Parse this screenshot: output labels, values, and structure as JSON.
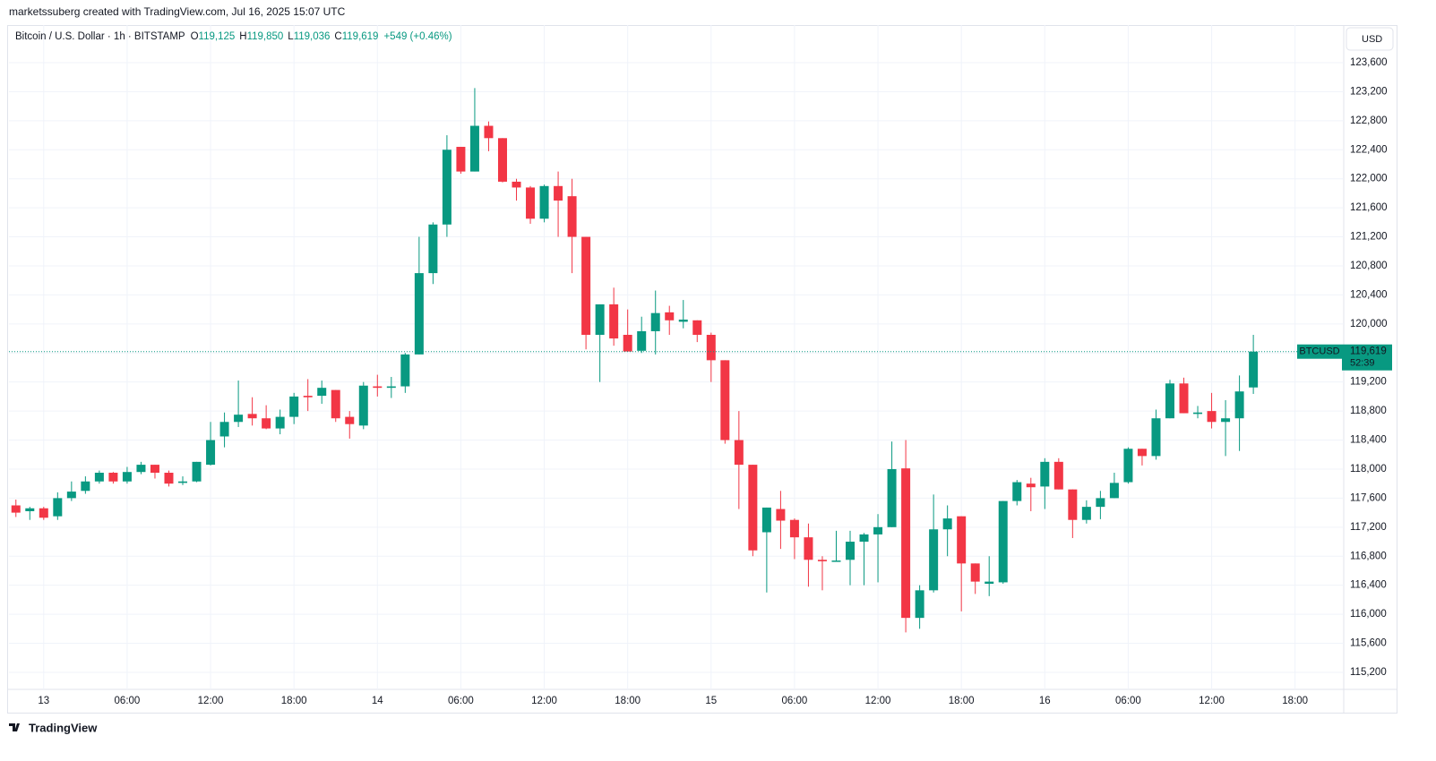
{
  "page_caption": "marketssuberg created with TradingView.com, Jul 16, 2025 15:07 UTC",
  "footer_brand": "TradingView",
  "chart_data": {
    "type": "candlestick",
    "header": {
      "symbol_title": "Bitcoin / U.S. Dollar · 1h · BITSTAMP",
      "ohlc": [
        {
          "key": "O",
          "value": "119,125"
        },
        {
          "key": "H",
          "value": "119,850"
        },
        {
          "key": "L",
          "value": "119,036"
        },
        {
          "key": "C",
          "value": "119,619"
        }
      ],
      "change": "+549 (+0.46%)"
    },
    "currency": "USD",
    "last_price": {
      "symbol": "BTCUSD",
      "label": "119,619",
      "countdown": "52:39"
    },
    "up_color": "#089981",
    "down_color": "#f23645",
    "grid": true,
    "categories": [
      null,
      null,
      "13",
      null,
      null,
      null,
      null,
      null,
      "06:00",
      null,
      null,
      null,
      null,
      null,
      "12:00",
      null,
      null,
      null,
      null,
      null,
      "18:00",
      null,
      null,
      null,
      null,
      null,
      "14",
      null,
      null,
      null,
      null,
      null,
      "06:00",
      null,
      null,
      null,
      null,
      null,
      "12:00",
      null,
      null,
      null,
      null,
      null,
      "18:00",
      null,
      null,
      null,
      null,
      null,
      "15",
      null,
      null,
      null,
      null,
      null,
      "06:00",
      null,
      null,
      null,
      null,
      null,
      "12:00",
      null,
      null,
      null,
      null,
      null,
      "18:00",
      null,
      null,
      null,
      null,
      null,
      "16",
      null,
      null,
      null,
      null,
      null,
      "06:00",
      null,
      null,
      null,
      null,
      null,
      "12:00",
      null,
      null,
      null,
      null,
      null,
      "18:00",
      null,
      null,
      null
    ],
    "open": [
      117500,
      117420,
      117460,
      117350,
      117600,
      117700,
      117830,
      117950,
      117830,
      117960,
      118060,
      117950,
      117810,
      117830,
      118060,
      118450,
      118650,
      118760,
      118700,
      118560,
      118720,
      119010,
      119010,
      119090,
      118720,
      118600,
      119140,
      119120,
      119140,
      119580,
      120700,
      121370,
      122440,
      122100,
      122730,
      122560,
      121960,
      121880,
      121450,
      121900,
      121760,
      121200,
      119850,
      120270,
      119850,
      119630,
      119900,
      120160,
      120030,
      120050,
      119850,
      119500,
      118400,
      118060,
      117130,
      117450,
      117300,
      117060,
      116750,
      116730,
      116750,
      117000,
      117100,
      117200,
      118010,
      115950,
      116330,
      117170,
      117350,
      116700,
      116420,
      116440,
      117560,
      117800,
      117760,
      118100,
      117720,
      117300,
      117480,
      117600,
      117820,
      118280,
      118180,
      118700,
      119180,
      118760,
      118800,
      118650,
      118700,
      119125,
      null,
      null,
      null,
      null,
      null,
      null
    ],
    "high": [
      117580,
      117480,
      117480,
      117680,
      117830,
      117900,
      117980,
      117960,
      118030,
      118100,
      118060,
      117980,
      117900,
      118100,
      118650,
      118780,
      119220,
      118990,
      118880,
      118820,
      119050,
      119240,
      119220,
      119090,
      118800,
      119200,
      119300,
      119270,
      119600,
      121200,
      121400,
      122600,
      122440,
      123250,
      122790,
      122560,
      122000,
      121900,
      121920,
      122100,
      122000,
      121200,
      120270,
      120500,
      120200,
      120100,
      120460,
      120250,
      120330,
      120050,
      119880,
      119500,
      118800,
      118060,
      117470,
      117700,
      117320,
      117250,
      116800,
      117150,
      117150,
      117120,
      117380,
      118380,
      118400,
      116400,
      117650,
      117500,
      117350,
      116700,
      116800,
      117560,
      117850,
      117880,
      118150,
      118150,
      117720,
      117570,
      117700,
      117950,
      118300,
      118280,
      118820,
      119230,
      119260,
      118870,
      119050,
      118950,
      119290,
      119850,
      null,
      null,
      null,
      null,
      null,
      null
    ],
    "low": [
      117340,
      117300,
      117300,
      117300,
      117560,
      117660,
      117800,
      117800,
      117800,
      117930,
      117870,
      117760,
      117780,
      117820,
      118050,
      118300,
      118580,
      118600,
      118550,
      118480,
      118620,
      118800,
      118900,
      118650,
      118420,
      118550,
      119000,
      118980,
      119050,
      119580,
      120550,
      121200,
      122070,
      122100,
      122380,
      121950,
      121700,
      121380,
      121400,
      121200,
      120700,
      119650,
      119200,
      119700,
      119620,
      119600,
      119580,
      119850,
      119940,
      119750,
      119200,
      118350,
      117450,
      116800,
      116300,
      116900,
      116760,
      116380,
      116330,
      116730,
      116400,
      116400,
      116440,
      117200,
      115750,
      115800,
      116300,
      116800,
      116040,
      116280,
      116250,
      116420,
      117500,
      117420,
      117450,
      117720,
      117050,
      117250,
      117310,
      117600,
      117800,
      118050,
      118130,
      118700,
      118770,
      118700,
      118560,
      118180,
      118250,
      119036,
      null,
      null,
      null,
      null,
      null,
      null
    ],
    "close": [
      117400,
      117460,
      117330,
      117600,
      117690,
      117830,
      117950,
      117830,
      117960,
      118060,
      117950,
      117800,
      117830,
      118100,
      118400,
      118650,
      118750,
      118700,
      118560,
      118720,
      119000,
      118990,
      119120,
      118700,
      118620,
      119150,
      119120,
      119140,
      119580,
      120700,
      121370,
      122400,
      122100,
      122730,
      122560,
      121960,
      121880,
      121450,
      121900,
      121700,
      121200,
      119850,
      120270,
      119800,
      119620,
      119900,
      120150,
      120050,
      120060,
      119850,
      119500,
      118400,
      118060,
      116880,
      117470,
      117290,
      117060,
      116750,
      116730,
      116740,
      117000,
      117100,
      117200,
      118000,
      115950,
      116330,
      117170,
      117320,
      116700,
      116450,
      116450,
      117560,
      117820,
      117750,
      118100,
      117720,
      117300,
      117480,
      117600,
      117810,
      118280,
      118180,
      118700,
      119180,
      118770,
      118780,
      118650,
      118700,
      119070,
      119619,
      null,
      null,
      null,
      null,
      null,
      null
    ],
    "ylim": [
      114965,
      124118
    ],
    "yticks": [
      {
        "value": 115200,
        "label": "115,200"
      },
      {
        "value": 115600,
        "label": "115,600"
      },
      {
        "value": 116000,
        "label": "116,000"
      },
      {
        "value": 116400,
        "label": "116,400"
      },
      {
        "value": 116800,
        "label": "116,800"
      },
      {
        "value": 117200,
        "label": "117,200"
      },
      {
        "value": 117600,
        "label": "117,600"
      },
      {
        "value": 118000,
        "label": "118,000"
      },
      {
        "value": 118400,
        "label": "118,400"
      },
      {
        "value": 118800,
        "label": "118,800"
      },
      {
        "value": 119200,
        "label": "119,200"
      },
      {
        "value": 119600,
        "label": "119,600"
      },
      {
        "value": 120000,
        "label": "120,000"
      },
      {
        "value": 120400,
        "label": "120,400"
      },
      {
        "value": 120800,
        "label": "120,800"
      },
      {
        "value": 121200,
        "label": "121,200"
      },
      {
        "value": 121600,
        "label": "121,600"
      },
      {
        "value": 122000,
        "label": "122,000"
      },
      {
        "value": 122400,
        "label": "122,400"
      },
      {
        "value": 122800,
        "label": "122,800"
      },
      {
        "value": 123200,
        "label": "123,200"
      },
      {
        "value": 123600,
        "label": "123,600"
      }
    ]
  }
}
